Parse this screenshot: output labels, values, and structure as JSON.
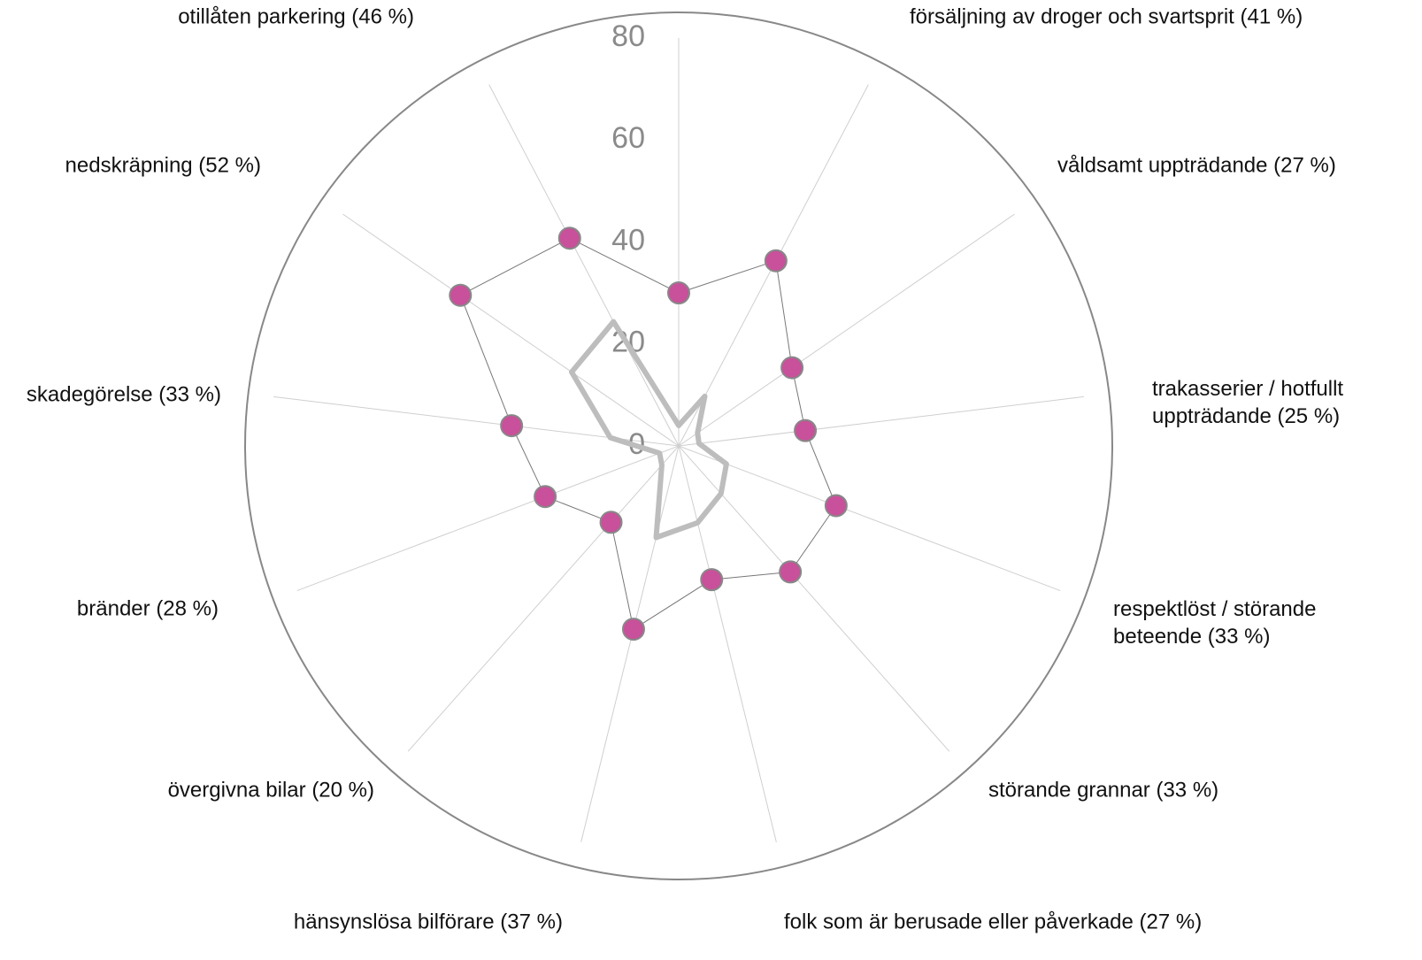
{
  "chart_data": {
    "type": "radar",
    "categories": [
      null,
      "försäljning av droger och svartsprit (41 %)",
      "våldsamt uppträdande (27 %)",
      "trakasserier / hotfullt\nuppträdande (25 %)",
      "respektlöst / störande\nbeteende (33 %)",
      "störande grannar (33 %)",
      "folk som är berusade eller påverkade (27 %)",
      "hänsynslösa bilförare (37 %)",
      "övergivna bilar (20 %)",
      "bränder (28 %)",
      "skadegörelse (33 %)",
      "nedskräpning (52 %)",
      "otillåten parkering (46 %)"
    ],
    "series": [
      {
        "color": "#bdbdbd",
        "values": [
          4,
          11,
          4.5,
          4,
          10,
          12.5,
          15.5,
          18.5,
          5,
          4,
          13.5,
          25.5,
          27.5
        ]
      },
      {
        "color": "#c9509a",
        "values": [
          30,
          41,
          27,
          25,
          33,
          33,
          27,
          37,
          20,
          28,
          33,
          52,
          46
        ]
      }
    ],
    "ylim": [
      0,
      85
    ],
    "yticks": [
      0,
      20,
      40,
      60,
      80
    ]
  }
}
